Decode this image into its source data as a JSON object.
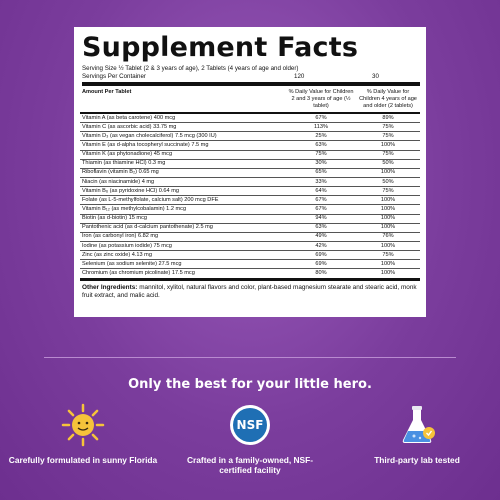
{
  "facts": {
    "title": "Supplement Facts",
    "serving_size": "Serving Size ½ Tablet (2 & 3 years of age), 2 Tablets (4 years of age and older)",
    "servings_label": "Servings Per Container",
    "servings_children_2_3": "120",
    "servings_children_4": "30",
    "header_amount": "Amount Per Tablet",
    "header_col1": "% Daily Value for Children 2 and 3 years of age (½ tablet)",
    "header_col2": "% Daily Value for Children 4 years of age and older (2 tablets)",
    "rows": [
      {
        "nutrient": "Vitamin A (as beta carotene) 400 mcg",
        "dv1": "67%",
        "dv2": "89%"
      },
      {
        "nutrient": "Vitamin C (as ascorbic acid) 33.75 mg",
        "dv1": "113%",
        "dv2": "75%"
      },
      {
        "nutrient": "Vitamin D₃ (as vegan cholecalciferol) 7.5 mcg (300 IU)",
        "dv1": "25%",
        "dv2": "75%"
      },
      {
        "nutrient": "Vitamin E (as d-alpha tocopheryl succinate) 7.5 mg",
        "dv1": "63%",
        "dv2": "100%"
      },
      {
        "nutrient": "Vitamin K (as phytonadione) 45 mcg",
        "dv1": "75%",
        "dv2": "75%"
      },
      {
        "nutrient": "Thiamin (as thiamine HCl) 0.3 mg",
        "dv1": "30%",
        "dv2": "50%"
      },
      {
        "nutrient": "Riboflavin (vitamin B₂) 0.65 mg",
        "dv1": "65%",
        "dv2": "100%"
      },
      {
        "nutrient": "Niacin (as niacinamide) 4 mg",
        "dv1": "33%",
        "dv2": "50%"
      },
      {
        "nutrient": "Vitamin B₆ (as pyridoxine HCl) 0.64 mg",
        "dv1": "64%",
        "dv2": "75%"
      },
      {
        "nutrient": "Folate (as L-5-methylfolate, calcium salt) 200 mcg DFE",
        "dv1": "67%",
        "dv2": "100%"
      },
      {
        "nutrient": "Vitamin B₁₂ (as methylcobalamin) 1.2 mcg",
        "dv1": "67%",
        "dv2": "100%"
      },
      {
        "nutrient": "Biotin (as d-biotin) 15 mcg",
        "dv1": "94%",
        "dv2": "100%"
      },
      {
        "nutrient": "Pantothenic acid (as d-calcium pantothenate) 2.5 mg",
        "dv1": "63%",
        "dv2": "100%"
      },
      {
        "nutrient": "Iron (as carbonyl iron) 6.82 mg",
        "dv1": "49%",
        "dv2": "76%"
      },
      {
        "nutrient": "Iodine (as potassium iodide) 75 mcg",
        "dv1": "42%",
        "dv2": "100%"
      },
      {
        "nutrient": "Zinc (as zinc oxide) 4.13 mg",
        "dv1": "69%",
        "dv2": "75%"
      },
      {
        "nutrient": "Selenium (as sodium selenite) 27.5 mcg",
        "dv1": "69%",
        "dv2": "100%"
      },
      {
        "nutrient": "Chromium (as chromium picolinate) 17.5 mcg",
        "dv1": "80%",
        "dv2": "100%"
      }
    ],
    "other_ingredients_label": "Other Ingredients:",
    "other_ingredients": "mannitol, xylitol, natural flavors and color, plant-based magnesium stearate and stearic acid, monk fruit extract, and malic acid."
  },
  "tagline": "Only the best for your little hero.",
  "features": [
    {
      "icon": "sun-icon",
      "label": "Carefully formulated in sunny Florida"
    },
    {
      "icon": "nsf-badge-icon",
      "label": "Crafted in a family-owned, NSF-certified facility",
      "badge_text": "NSF"
    },
    {
      "icon": "lab-flask-icon",
      "label": "Third-party lab tested"
    }
  ],
  "colors": {
    "background": "#7a3c9c",
    "panel": "#ffffff",
    "sun_yellow": "#f6c33a",
    "nsf_blue": "#1f6fb4",
    "flask_blue": "#4a90e2"
  }
}
